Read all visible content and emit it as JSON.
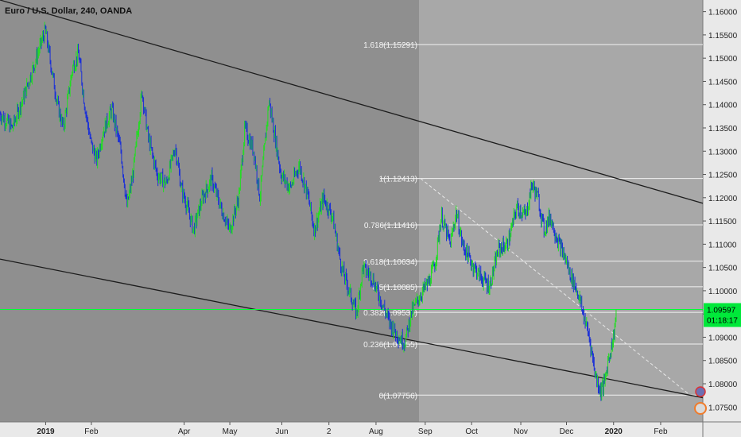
{
  "header": {
    "title": "Euro / U.S. Dollar, 240, OANDA"
  },
  "colors": {
    "bg_left": "#8f8f8f",
    "bg_right": "#a8a8a8",
    "axis_bg": "#e9e9e9",
    "candle_up": "#22dd22",
    "candle_down": "#1a2fd8",
    "fib": "#f2f2f2",
    "channel": "#1c1c1c",
    "price_line": "#00ff33",
    "badge_bg": "#00e83a"
  },
  "chart_data": {
    "type": "candlestick",
    "title": "Euro / U.S. Dollar, 240, OANDA",
    "ylim": [
      1.0718,
      1.1625
    ],
    "y_ticks": [
      "1.16000",
      "1.15500",
      "1.15000",
      "1.14500",
      "1.14000",
      "1.13500",
      "1.13000",
      "1.12500",
      "1.12000",
      "1.11500",
      "1.11000",
      "1.10500",
      "1.10000",
      "1.09500",
      "1.09000",
      "1.08500",
      "1.08000",
      "1.07500"
    ],
    "x_ticks": [
      "2019",
      "Feb",
      "Apr",
      "May",
      "Jun",
      "2",
      "Aug",
      "Sep",
      "Oct",
      "Nov",
      "Dec",
      "2020",
      "Feb"
    ],
    "x_tick_positions": [
      0.065,
      0.13,
      0.262,
      0.327,
      0.401,
      0.468,
      0.535,
      0.605,
      0.671,
      0.741,
      0.806,
      0.873,
      0.94
    ],
    "price_path": [
      [
        0.0,
        1.138
      ],
      [
        0.02,
        1.135
      ],
      [
        0.04,
        1.142
      ],
      [
        0.06,
        1.15
      ],
      [
        0.075,
        1.156
      ],
      [
        0.085,
        1.148
      ],
      [
        0.095,
        1.14
      ],
      [
        0.105,
        1.135
      ],
      [
        0.12,
        1.148
      ],
      [
        0.13,
        1.151
      ],
      [
        0.14,
        1.14
      ],
      [
        0.15,
        1.132
      ],
      [
        0.16,
        1.128
      ],
      [
        0.17,
        1.134
      ],
      [
        0.185,
        1.139
      ],
      [
        0.2,
        1.13
      ],
      [
        0.21,
        1.118
      ],
      [
        0.22,
        1.125
      ],
      [
        0.235,
        1.143
      ],
      [
        0.245,
        1.133
      ],
      [
        0.26,
        1.125
      ],
      [
        0.275,
        1.123
      ],
      [
        0.29,
        1.131
      ],
      [
        0.3,
        1.122
      ],
      [
        0.31,
        1.118
      ],
      [
        0.32,
        1.113
      ],
      [
        0.335,
        1.12
      ],
      [
        0.35,
        1.124
      ],
      [
        0.365,
        1.118
      ],
      [
        0.38,
        1.113
      ],
      [
        0.395,
        1.12
      ],
      [
        0.405,
        1.135
      ],
      [
        0.42,
        1.13
      ],
      [
        0.43,
        1.12
      ],
      [
        0.445,
        1.141
      ],
      [
        0.455,
        1.133
      ],
      [
        0.465,
        1.125
      ],
      [
        0.48,
        1.122
      ],
      [
        0.495,
        1.127
      ],
      [
        0.51,
        1.12
      ],
      [
        0.52,
        1.113
      ],
      [
        0.535,
        1.12
      ],
      [
        0.55,
        1.116
      ],
      [
        0.565,
        1.105
      ],
      [
        0.58,
        1.099
      ],
      [
        0.59,
        1.095
      ],
      [
        0.6,
        1.105
      ],
      [
        0.615,
        1.103
      ],
      [
        0.63,
        1.098
      ],
      [
        0.645,
        1.093
      ],
      [
        0.66,
        1.09
      ],
      [
        0.67,
        1.089
      ],
      [
        0.68,
        1.095
      ],
      [
        0.695,
        1.099
      ],
      [
        0.71,
        1.102
      ],
      [
        0.72,
        1.106
      ],
      [
        0.73,
        1.116
      ],
      [
        0.745,
        1.11
      ],
      [
        0.755,
        1.117
      ],
      [
        0.765,
        1.11
      ],
      [
        0.78,
        1.106
      ],
      [
        0.795,
        1.103
      ],
      [
        0.81,
        1.101
      ],
      [
        0.825,
        1.109
      ],
      [
        0.84,
        1.11
      ],
      [
        0.855,
        1.118
      ],
      [
        0.87,
        1.116
      ],
      [
        0.88,
        1.123
      ],
      [
        0.89,
        1.12
      ],
      [
        0.9,
        1.113
      ],
      [
        0.91,
        1.116
      ],
      [
        0.925,
        1.11
      ],
      [
        0.935,
        1.107
      ],
      [
        0.945,
        1.103
      ],
      [
        0.955,
        1.1
      ],
      [
        0.965,
        1.095
      ],
      [
        0.975,
        1.09
      ],
      [
        0.985,
        1.082
      ],
      [
        0.993,
        1.0785
      ],
      [
        1.0,
        1.08
      ],
      [
        1.006,
        1.085
      ],
      [
        1.015,
        1.09
      ],
      [
        1.02,
        1.096
      ]
    ],
    "fib_levels": [
      {
        "label": "1.618(1.15291)",
        "value": 1.15291
      },
      {
        "label": "1(1.12413)",
        "value": 1.12413
      },
      {
        "label": "0.786(1.11416)",
        "value": 1.11416
      },
      {
        "label": "0.618(1.10634)",
        "value": 1.10634
      },
      {
        "label": "0.5(1.10085)",
        "value": 1.10085
      },
      {
        "label": "0.382(1.09535)",
        "value": 1.09535
      },
      {
        "label": "0.236(1.08855)",
        "value": 1.08855
      },
      {
        "label": "0(1.07756)",
        "value": 1.07756
      }
    ],
    "current_price": {
      "value": 1.09597,
      "label": "1.09597",
      "countdown": "01:18:17"
    }
  }
}
